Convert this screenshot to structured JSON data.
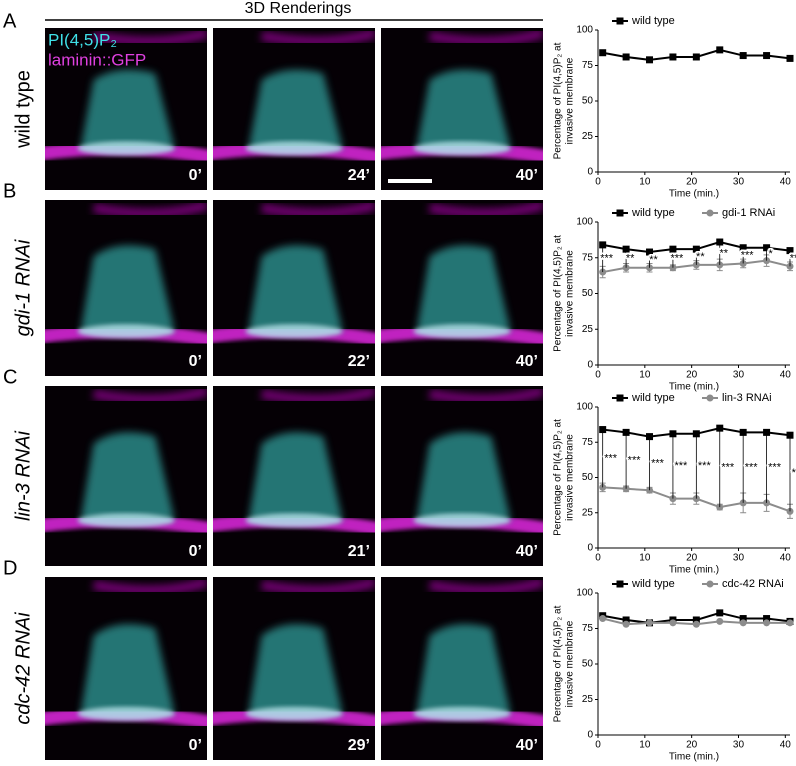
{
  "header": "3D Renderings",
  "image_legend": [
    "PI(4,5)P₂",
    "laminin::GFP"
  ],
  "rows": [
    {
      "letter": "A",
      "label": "wild type",
      "times": [
        "0’",
        "24’",
        "40’"
      ]
    },
    {
      "letter": "B",
      "label": "gdi-1 RNAi",
      "times": [
        "0’",
        "22’",
        "40’"
      ]
    },
    {
      "letter": "C",
      "label": "lin-3 RNAi",
      "times": [
        "0’",
        "21’",
        "40’"
      ]
    },
    {
      "letter": "D",
      "label": "cdc-42 RNAi",
      "times": [
        "0’",
        "29’",
        "40’"
      ]
    }
  ],
  "chart_data": [
    {
      "type": "line",
      "ylabel": [
        "Percentage of PI(4,5)P₂ at",
        "invasive membrane"
      ],
      "xlabel": "Time (min.)",
      "x": [
        1,
        6,
        11,
        16,
        21,
        26,
        31,
        36,
        41
      ],
      "xlim": [
        0,
        41
      ],
      "xticks": [
        0,
        10,
        20,
        30,
        40
      ],
      "ylim": [
        0,
        100
      ],
      "yticks": [
        0,
        25,
        50,
        75,
        100
      ],
      "series": [
        {
          "name": "wild type",
          "color": "#000000",
          "marker": "square",
          "values": [
            84,
            81,
            79,
            81,
            81,
            86,
            82,
            82,
            80
          ]
        }
      ]
    },
    {
      "type": "line",
      "ylabel": [
        "Percentage of PI(4,5)P₂ at",
        "invasive membrane"
      ],
      "xlabel": "Time (min.)",
      "x": [
        1,
        6,
        11,
        16,
        21,
        26,
        31,
        36,
        41
      ],
      "xlim": [
        0,
        41
      ],
      "xticks": [
        0,
        10,
        20,
        30,
        40
      ],
      "ylim": [
        0,
        100
      ],
      "yticks": [
        0,
        25,
        50,
        75,
        100
      ],
      "series": [
        {
          "name": "wild type",
          "color": "#000000",
          "marker": "square",
          "values": [
            84,
            81,
            79,
            81,
            81,
            86,
            82,
            82,
            80
          ]
        },
        {
          "name": "gdi-1 RNAi",
          "color": "#8c8c8c",
          "marker": "circle",
          "values": [
            65,
            68,
            68,
            68,
            70,
            70,
            71,
            73,
            69
          ],
          "errors": [
            4,
            3,
            3,
            2,
            3,
            4,
            3,
            4,
            3
          ]
        }
      ],
      "annotations": [
        "***",
        "**",
        "**",
        "***",
        "**",
        "**",
        "***",
        "*",
        "**"
      ]
    },
    {
      "type": "line",
      "ylabel": [
        "Percentage of PI(4,5)P₂ at",
        "invasive membrane"
      ],
      "xlabel": "Time (min.)",
      "x": [
        1,
        6,
        11,
        16,
        21,
        26,
        31,
        36,
        41
      ],
      "xlim": [
        0,
        41
      ],
      "xticks": [
        0,
        10,
        20,
        30,
        40
      ],
      "ylim": [
        0,
        100
      ],
      "yticks": [
        0,
        25,
        50,
        75,
        100
      ],
      "series": [
        {
          "name": "wild type",
          "color": "#000000",
          "marker": "square",
          "values": [
            84,
            82,
            79,
            81,
            81,
            85,
            82,
            82,
            80
          ]
        },
        {
          "name": "lin-3 RNAi",
          "color": "#8c8c8c",
          "marker": "circle",
          "values": [
            43,
            42,
            41,
            35,
            35,
            29,
            32,
            32,
            26
          ],
          "errors": [
            3,
            2,
            2,
            4,
            4,
            2,
            7,
            6,
            5
          ]
        }
      ],
      "annotations": [
        "***",
        "***",
        "***",
        "***",
        "***",
        "***",
        "***",
        "***",
        "***"
      ]
    },
    {
      "type": "line",
      "ylabel": [
        "Percentage of PI(4,5)P₂ at",
        "invasive membrane"
      ],
      "xlabel": "Time (min.)",
      "x": [
        1,
        6,
        11,
        16,
        21,
        26,
        31,
        36,
        41
      ],
      "xlim": [
        0,
        41
      ],
      "xticks": [
        0,
        10,
        20,
        30,
        40
      ],
      "ylim": [
        0,
        100
      ],
      "yticks": [
        0,
        25,
        50,
        75,
        100
      ],
      "series": [
        {
          "name": "wild type",
          "color": "#000000",
          "marker": "square",
          "values": [
            84,
            81,
            79,
            81,
            81,
            86,
            82,
            82,
            80
          ]
        },
        {
          "name": "cdc-42 RNAi",
          "color": "#8c8c8c",
          "marker": "circle",
          "values": [
            82,
            78,
            79,
            79,
            78,
            80,
            79,
            79,
            79
          ]
        }
      ]
    }
  ]
}
